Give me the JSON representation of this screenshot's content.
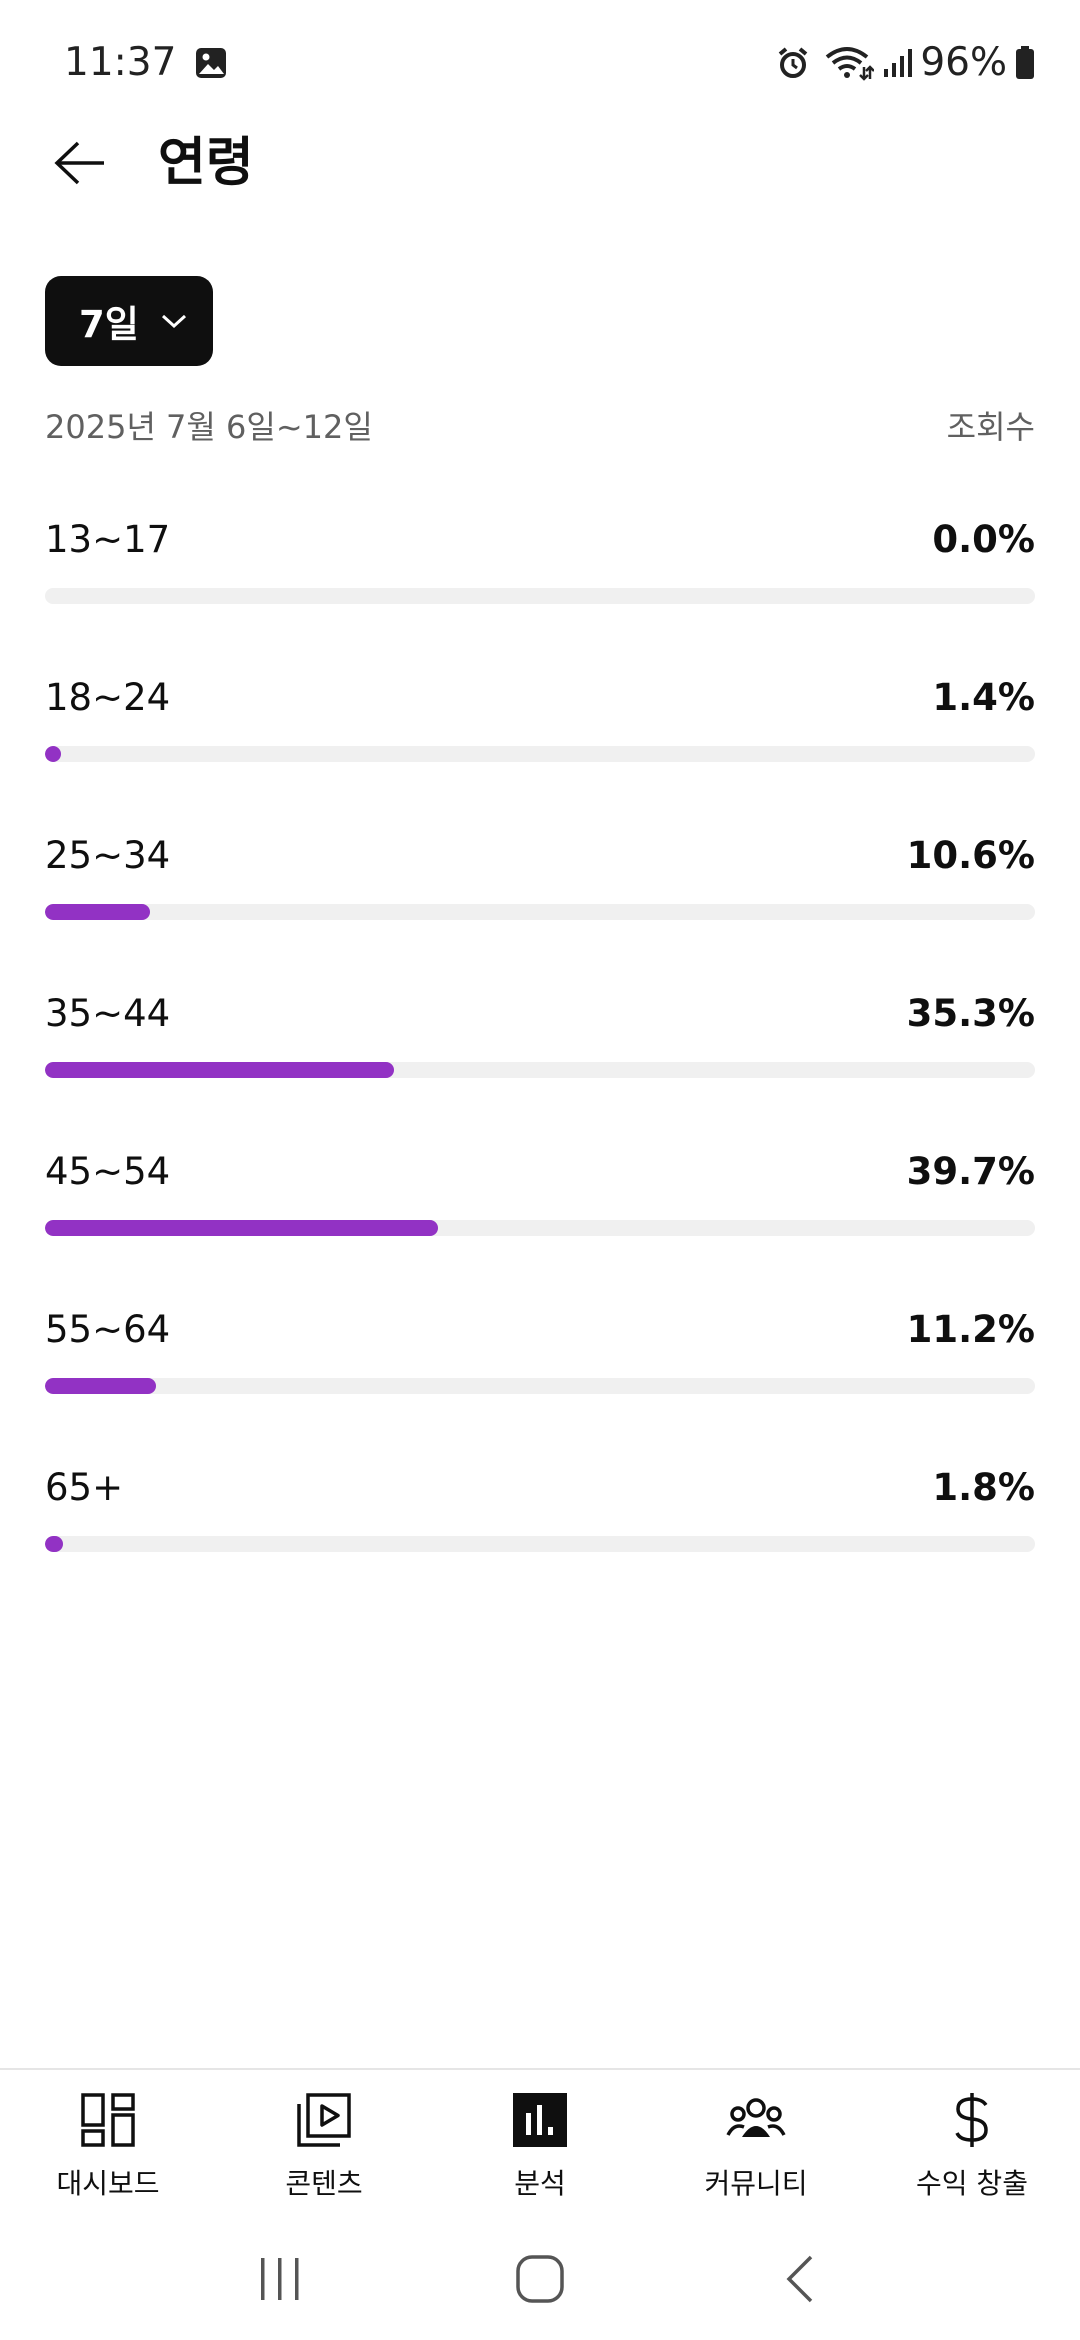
{
  "status_bar": {
    "time": "11:37",
    "battery_percent": "96%",
    "icons": [
      "gallery-icon",
      "alarm-icon",
      "wifi-icon",
      "signal-icon",
      "battery-icon"
    ]
  },
  "header": {
    "title": "연령",
    "back_icon": "arrow-left-icon"
  },
  "filter": {
    "period_label": "7일",
    "date_range": "2025년 7월 6일~12일",
    "metric": "조회수"
  },
  "accent_color": "#9232c4",
  "age_groups": [
    {
      "label": "13~17",
      "percent_text": "0.0%",
      "value": 0.0
    },
    {
      "label": "18~24",
      "percent_text": "1.4%",
      "value": 1.4
    },
    {
      "label": "25~34",
      "percent_text": "10.6%",
      "value": 10.6
    },
    {
      "label": "35~44",
      "percent_text": "35.3%",
      "value": 35.3
    },
    {
      "label": "45~54",
      "percent_text": "39.7%",
      "value": 39.7
    },
    {
      "label": "55~64",
      "percent_text": "11.2%",
      "value": 11.2
    },
    {
      "label": "65+",
      "percent_text": "1.8%",
      "value": 1.8
    }
  ],
  "bottom_nav": [
    {
      "label": "대시보드",
      "icon": "dashboard-icon",
      "active": false
    },
    {
      "label": "콘텐츠",
      "icon": "content-icon",
      "active": false
    },
    {
      "label": "분석",
      "icon": "analytics-icon",
      "active": true
    },
    {
      "label": "커뮤니티",
      "icon": "community-icon",
      "active": false
    },
    {
      "label": "수익 창출",
      "icon": "dollar-icon",
      "active": false
    }
  ],
  "system_nav": [
    "recents-icon",
    "home-icon",
    "back-icon"
  ]
}
